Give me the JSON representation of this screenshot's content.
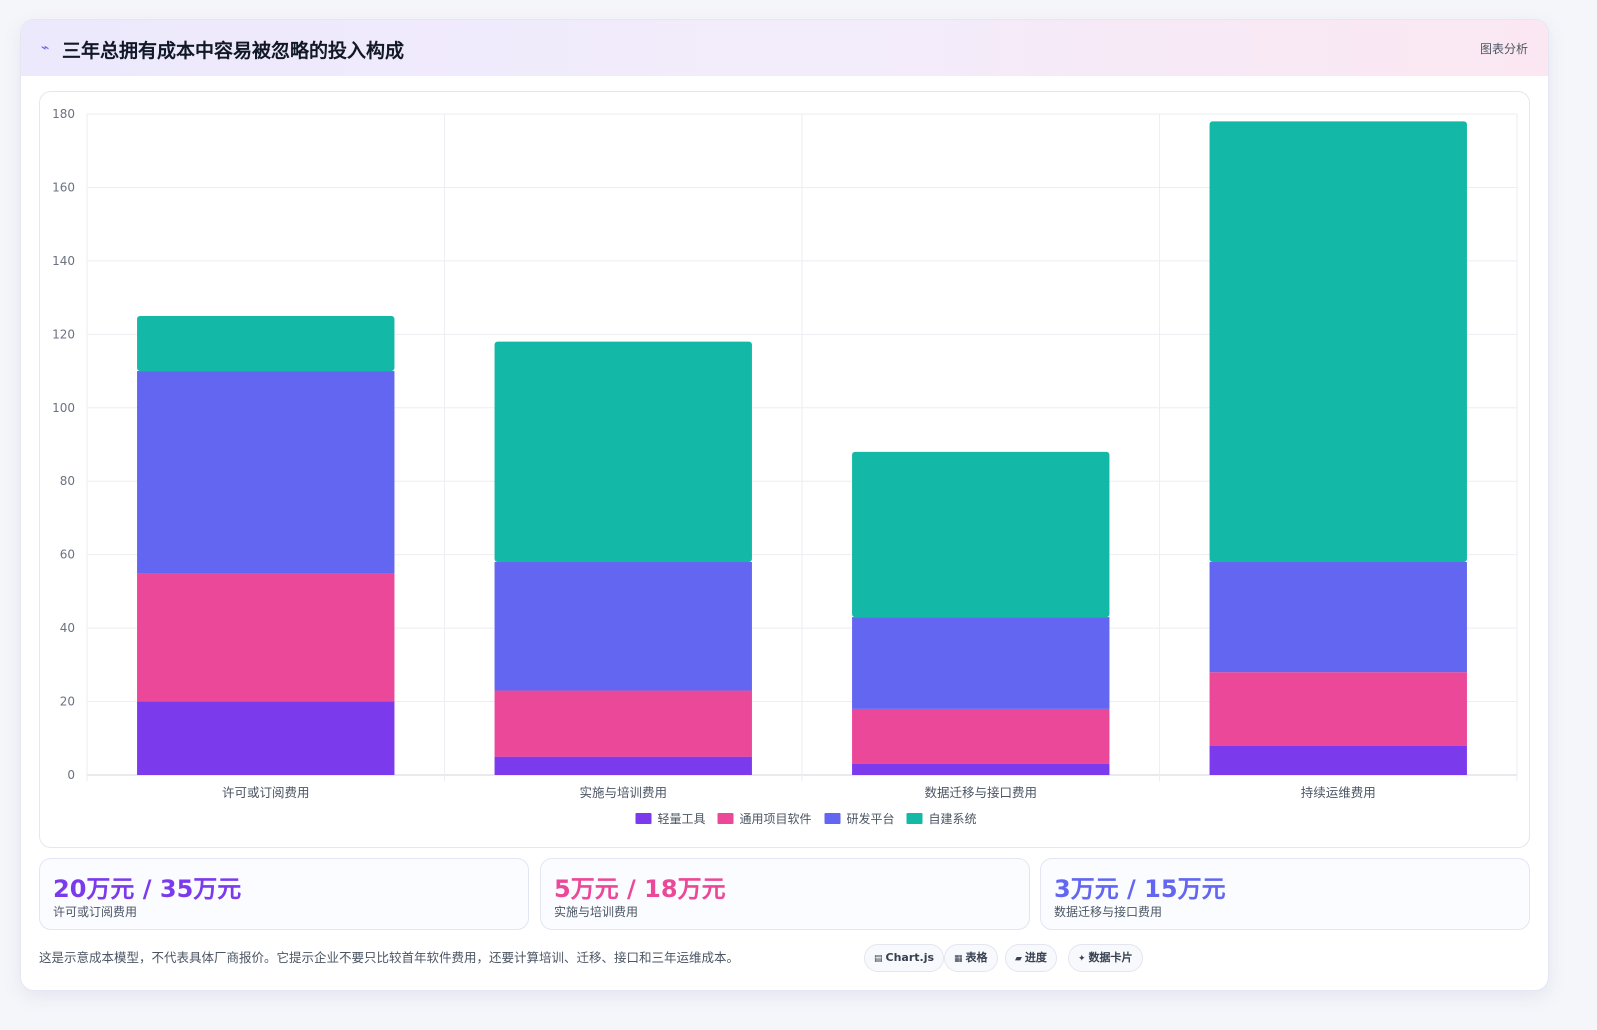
{
  "header": {
    "icon": "⌁",
    "title": "三年总拥有成本中容易被忽略的投入构成",
    "tag": "图表分析"
  },
  "chart_data": {
    "type": "bar",
    "stacked": true,
    "categories": [
      "许可或订阅费用",
      "实施与培训费用",
      "数据迁移与接口费用",
      "持续运维费用"
    ],
    "series": [
      {
        "name": "轻量工具",
        "color": "#7c3aed",
        "values": [
          20,
          5,
          3,
          8
        ]
      },
      {
        "name": "通用项目软件",
        "color": "#ec4899",
        "values": [
          35,
          18,
          15,
          20
        ]
      },
      {
        "name": "研发平台",
        "color": "#6366f1",
        "values": [
          55,
          35,
          25,
          30
        ]
      },
      {
        "name": "自建系统",
        "color": "#14b8a6",
        "values": [
          15,
          60,
          45,
          120
        ]
      }
    ],
    "ylim": [
      0,
      180
    ],
    "yticks": [
      0,
      20,
      40,
      60,
      80,
      100,
      120,
      140,
      160,
      180
    ],
    "grid": true,
    "legend": "bottom"
  },
  "stats": [
    {
      "value": "20万元 / 35万元",
      "label": "许可或订阅费用",
      "color": "#7c3aed"
    },
    {
      "value": "5万元 / 18万元",
      "label": "实施与培训费用",
      "color": "#ec4899"
    },
    {
      "value": "3万元 / 15万元",
      "label": "数据迁移与接口费用",
      "color": "#6366f1"
    }
  ],
  "note": "这是示意成本模型，不代表具体厂商报价。它提示企业不要只比较首年软件费用，还要计算培训、迁移、接口和三年运维成本。",
  "chips": [
    {
      "icon": "▤",
      "label": "Chart.js"
    },
    {
      "icon": "▦",
      "label": "表格"
    },
    {
      "icon": "▰",
      "label": "进度"
    },
    {
      "icon": "✦",
      "label": "数据卡片"
    }
  ]
}
